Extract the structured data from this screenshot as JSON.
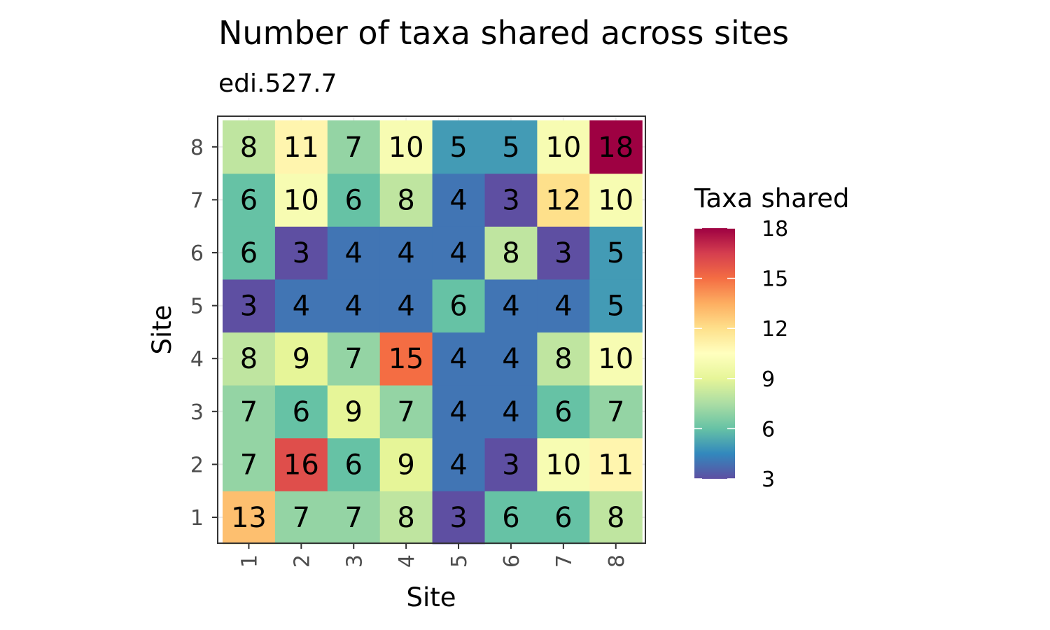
{
  "chart_data": {
    "type": "heatmap",
    "title": "Number of taxa shared across sites",
    "subtitle": "edi.527.7",
    "xlabel": "Site",
    "ylabel": "Site",
    "x_categories": [
      "1",
      "2",
      "3",
      "4",
      "5",
      "6",
      "7",
      "8"
    ],
    "y_categories": [
      "1",
      "2",
      "3",
      "4",
      "5",
      "6",
      "7",
      "8"
    ],
    "values": [
      [
        13,
        7,
        7,
        8,
        3,
        6,
        6,
        8
      ],
      [
        7,
        16,
        6,
        9,
        4,
        3,
        10,
        11
      ],
      [
        7,
        6,
        9,
        7,
        4,
        4,
        6,
        7
      ],
      [
        8,
        9,
        7,
        15,
        4,
        4,
        8,
        10
      ],
      [
        3,
        4,
        4,
        4,
        6,
        4,
        4,
        5
      ],
      [
        6,
        3,
        4,
        4,
        4,
        8,
        3,
        5
      ],
      [
        6,
        10,
        6,
        8,
        4,
        3,
        12,
        10
      ],
      [
        8,
        11,
        7,
        10,
        5,
        5,
        10,
        18
      ]
    ],
    "legend": {
      "title": "Taxa shared",
      "min": 3,
      "max": 18,
      "ticks": [
        3,
        6,
        9,
        12,
        15,
        18
      ],
      "placement": "right"
    },
    "palette": [
      "#5E4FA2",
      "#3288BD",
      "#66C2A5",
      "#ABDDA4",
      "#E6F598",
      "#FFFFBF",
      "#FEE08B",
      "#FDAE61",
      "#F46D43",
      "#D53E4F",
      "#9E0142"
    ],
    "grid": true
  }
}
